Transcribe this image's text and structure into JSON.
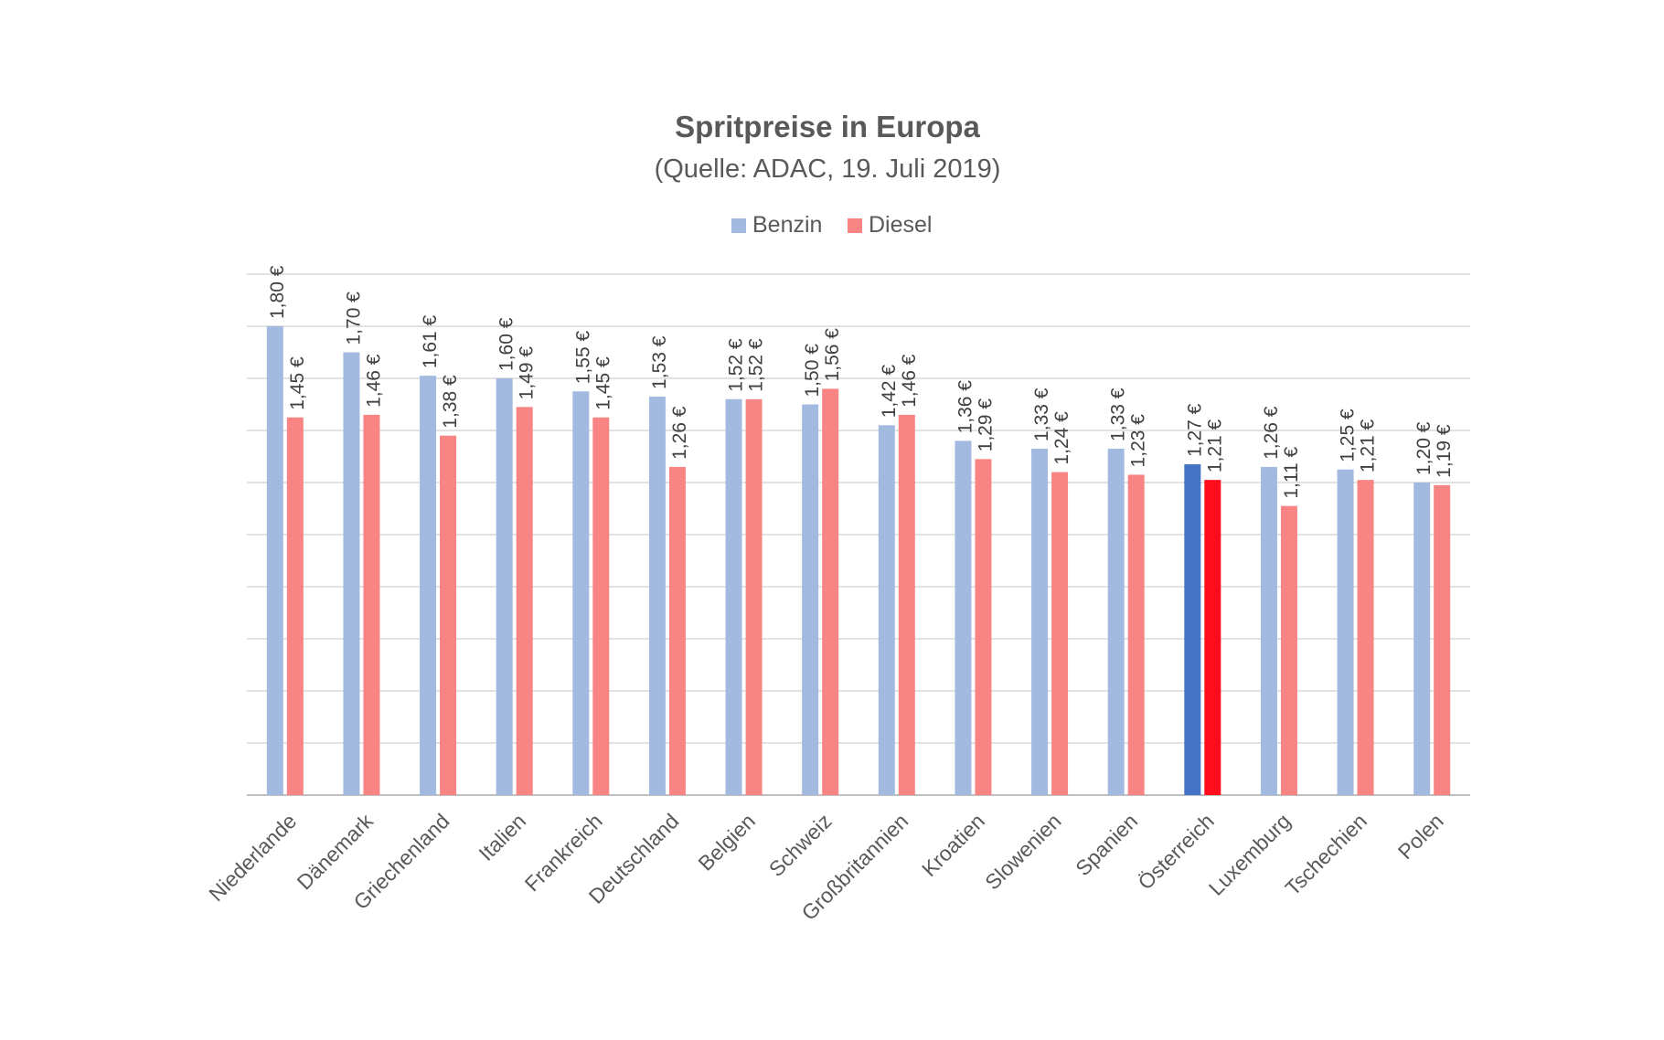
{
  "chart_data": {
    "type": "bar",
    "title": "Spritpreise in Europa",
    "subtitle": "(Quelle: ADAC, 19. Juli 2019)",
    "categories": [
      "Niederlande",
      "Dänemark",
      "Griechenland",
      "Italien",
      "Frankreich",
      "Deutschland",
      "Belgien",
      "Schweiz",
      "Großbritannien",
      "Kroatien",
      "Slowenien",
      "Spanien",
      "Österreich",
      "Luxemburg",
      "Tschechien",
      "Polen"
    ],
    "series": [
      {
        "name": "Benzin",
        "color": "#A3BAE0",
        "values": [
          1.8,
          1.7,
          1.61,
          1.6,
          1.55,
          1.53,
          1.52,
          1.5,
          1.42,
          1.36,
          1.33,
          1.33,
          1.27,
          1.26,
          1.25,
          1.2
        ],
        "labels": [
          "1,80 €",
          "1,70 €",
          "1,61 €",
          "1,60 €",
          "1,55 €",
          "1,53 €",
          "1,52 €",
          "1,50 €",
          "1,42 €",
          "1,36 €",
          "1,33 €",
          "1,33 €",
          "1,27 €",
          "1,26 €",
          "1,25 €",
          "1,20 €"
        ]
      },
      {
        "name": "Diesel",
        "color": "#F98484",
        "values": [
          1.45,
          1.46,
          1.38,
          1.49,
          1.45,
          1.26,
          1.52,
          1.56,
          1.46,
          1.29,
          1.24,
          1.23,
          1.21,
          1.11,
          1.21,
          1.19
        ],
        "labels": [
          "1,45 €",
          "1,46 €",
          "1,38 €",
          "1,49 €",
          "1,45 €",
          "1,26 €",
          "1,52 €",
          "1,56 €",
          "1,46 €",
          "1,29 €",
          "1,24 €",
          "1,23 €",
          "1,21 €",
          "1,11 €",
          "1,21 €",
          "1,19 €"
        ]
      }
    ],
    "highlight": {
      "category": "Österreich",
      "colors": {
        "Benzin": "#4472C4",
        "Diesel": "#FF0D1D"
      }
    },
    "ylim": [
      0,
      2.0
    ],
    "grid": true,
    "legend": "top-center"
  }
}
